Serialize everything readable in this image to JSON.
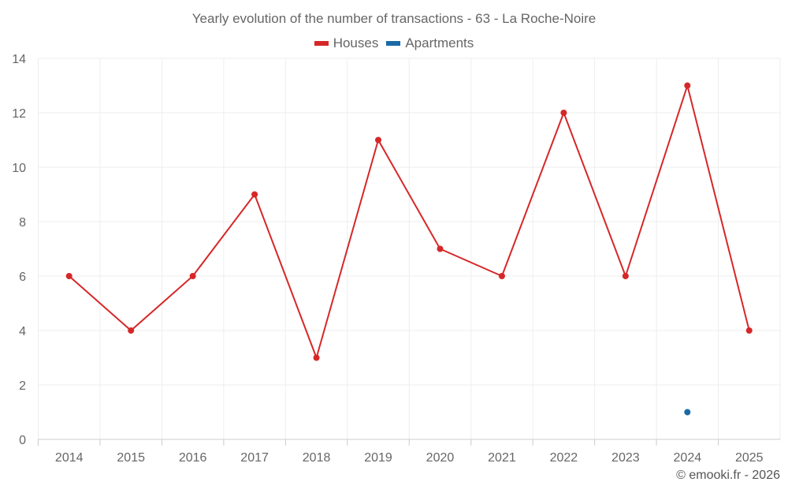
{
  "chart_data": {
    "type": "line",
    "title": "Yearly evolution of the number of transactions - 63 - La Roche-Noire",
    "categories": [
      "2014",
      "2015",
      "2016",
      "2017",
      "2018",
      "2019",
      "2020",
      "2021",
      "2022",
      "2023",
      "2024",
      "2025"
    ],
    "ylim": [
      0,
      14
    ],
    "yticks": [
      0,
      2,
      4,
      6,
      8,
      10,
      12,
      14
    ],
    "grid": true,
    "legend_position": "top-center",
    "series": [
      {
        "name": "Houses",
        "color": "#d62728",
        "values": [
          6,
          4,
          6,
          9,
          3,
          11,
          7,
          6,
          12,
          6,
          13,
          4
        ]
      },
      {
        "name": "Apartments",
        "color": "#1a6aa6",
        "values": [
          null,
          null,
          null,
          null,
          null,
          null,
          null,
          null,
          null,
          null,
          1,
          null
        ]
      }
    ],
    "xlabel": "",
    "ylabel": ""
  },
  "credit": "© emooki.fr - 2026"
}
